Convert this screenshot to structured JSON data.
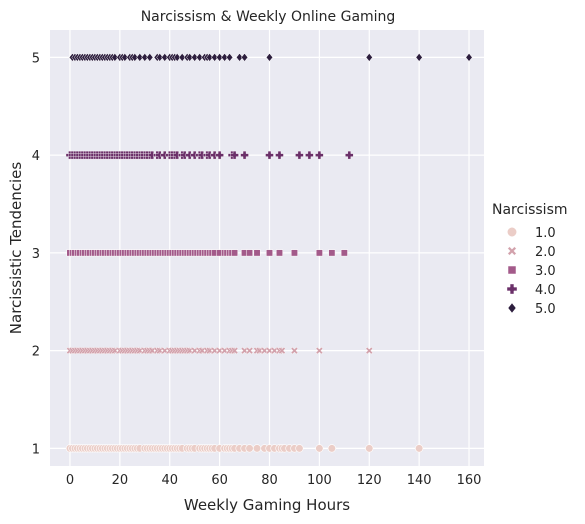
{
  "chart_data": {
    "type": "scatter",
    "title": "Narcissism & Weekly Online Gaming",
    "xlabel": "Weekly Gaming Hours",
    "ylabel": "Narcissistic Tendencies",
    "xlim": [
      -8,
      166
    ],
    "ylim": [
      0.82,
      5.28
    ],
    "xticks": [
      0,
      20,
      40,
      60,
      80,
      100,
      120,
      140,
      160
    ],
    "yticks": [
      1,
      2,
      3,
      4,
      5
    ],
    "xtick_labels": [
      "0",
      "20",
      "40",
      "60",
      "80",
      "100",
      "120",
      "140",
      "160"
    ],
    "ytick_labels": [
      "1",
      "2",
      "3",
      "4",
      "5"
    ],
    "grid": true,
    "background": "#EAEAF2",
    "legend": {
      "title": "Narcissism",
      "placement": "right-outside",
      "entries": [
        "1.0",
        "2.0",
        "3.0",
        "4.0",
        "5.0"
      ]
    },
    "series": [
      {
        "name": "1.0",
        "marker": "circle",
        "color": "#EBCDC7",
        "y": 1,
        "x": [
          0,
          1,
          2,
          3,
          4,
          5,
          6,
          7,
          8,
          9,
          10,
          11,
          12,
          13,
          14,
          15,
          16,
          17,
          18,
          19,
          20,
          21,
          22,
          23,
          24,
          25,
          26,
          27,
          28,
          30,
          31,
          32,
          33,
          34,
          35,
          36,
          37,
          38,
          39,
          40,
          41,
          42,
          43,
          44,
          45,
          47,
          48,
          49,
          50,
          52,
          53,
          54,
          55,
          56,
          57,
          58,
          60,
          62,
          63,
          64,
          65,
          66,
          68,
          70,
          72,
          75,
          78,
          80,
          82,
          84,
          85,
          86,
          88,
          90,
          92,
          100,
          105,
          120,
          140
        ]
      },
      {
        "name": "2.0",
        "marker": "x",
        "color": "#D2A1AB",
        "y": 2,
        "x": [
          0,
          1,
          2,
          3,
          4,
          5,
          6,
          7,
          8,
          9,
          10,
          11,
          12,
          13,
          14,
          15,
          16,
          17,
          18,
          20,
          21,
          22,
          23,
          24,
          25,
          26,
          27,
          28,
          30,
          31,
          32,
          33,
          35,
          36,
          38,
          40,
          41,
          42,
          43,
          44,
          45,
          46,
          47,
          48,
          50,
          52,
          53,
          55,
          56,
          58,
          60,
          62,
          64,
          65,
          66,
          70,
          72,
          75,
          76,
          78,
          80,
          82,
          84,
          85,
          90,
          100,
          120
        ]
      },
      {
        "name": "3.0",
        "marker": "square",
        "color": "#A35A8A",
        "y": 3,
        "x": [
          0,
          1,
          2,
          3,
          4,
          5,
          6,
          7,
          8,
          9,
          10,
          11,
          12,
          13,
          14,
          15,
          16,
          17,
          18,
          19,
          20,
          21,
          22,
          23,
          24,
          25,
          26,
          27,
          28,
          29,
          30,
          31,
          32,
          33,
          34,
          35,
          36,
          37,
          38,
          39,
          40,
          41,
          42,
          43,
          44,
          45,
          46,
          47,
          48,
          49,
          50,
          51,
          52,
          53,
          54,
          55,
          56,
          57,
          58,
          60,
          62,
          63,
          64,
          65,
          66,
          70,
          72,
          75,
          80,
          84,
          90,
          100,
          105,
          110
        ]
      },
      {
        "name": "4.0",
        "marker": "plus",
        "color": "#6B3069",
        "y": 4,
        "x": [
          0,
          1,
          2,
          3,
          4,
          5,
          6,
          7,
          8,
          9,
          10,
          11,
          12,
          13,
          14,
          15,
          16,
          17,
          18,
          19,
          20,
          21,
          22,
          23,
          24,
          25,
          26,
          27,
          28,
          29,
          30,
          31,
          32,
          33,
          35,
          36,
          38,
          40,
          41,
          42,
          43,
          45,
          46,
          48,
          50,
          52,
          53,
          55,
          56,
          58,
          60,
          65,
          66,
          70,
          80,
          84,
          92,
          96,
          100,
          112
        ]
      },
      {
        "name": "5.0",
        "marker": "diamond",
        "color": "#2D1E3E",
        "y": 5,
        "x": [
          1,
          2,
          3,
          4,
          5,
          6,
          7,
          8,
          9,
          10,
          11,
          12,
          13,
          14,
          15,
          16,
          17,
          18,
          20,
          21,
          22,
          24,
          25,
          26,
          28,
          30,
          32,
          35,
          36,
          38,
          40,
          41,
          42,
          43,
          45,
          47,
          48,
          50,
          52,
          54,
          55,
          56,
          58,
          60,
          62,
          64,
          68,
          70,
          80,
          120,
          140,
          160
        ]
      }
    ]
  }
}
